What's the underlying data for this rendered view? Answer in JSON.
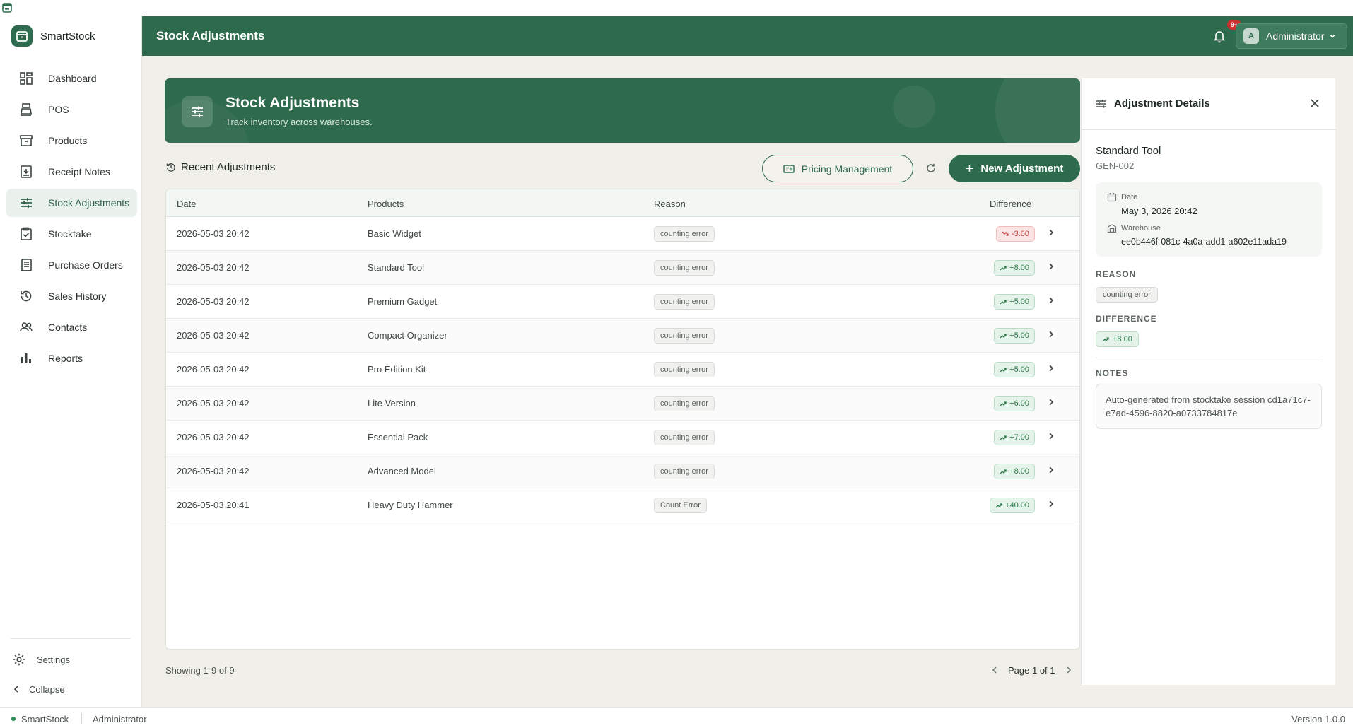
{
  "app": {
    "name": "SmartStock"
  },
  "colors": {
    "brand": "#2e6a4c",
    "positive": "#2b7a4c",
    "negative": "#c23a3a",
    "notification": "#c9312f"
  },
  "sidebar": {
    "items": [
      {
        "label": "Dashboard",
        "icon": "dashboard-icon"
      },
      {
        "label": "POS",
        "icon": "pos-icon"
      },
      {
        "label": "Products",
        "icon": "products-icon"
      },
      {
        "label": "Receipt Notes",
        "icon": "receipt-notes-icon"
      },
      {
        "label": "Stock Adjustments",
        "icon": "sliders-icon",
        "active": true
      },
      {
        "label": "Stocktake",
        "icon": "clipboard-check-icon"
      },
      {
        "label": "Purchase Orders",
        "icon": "purchase-orders-icon"
      },
      {
        "label": "Sales History",
        "icon": "history-icon"
      },
      {
        "label": "Contacts",
        "icon": "users-icon"
      },
      {
        "label": "Reports",
        "icon": "bar-chart-icon"
      }
    ],
    "settings_label": "Settings",
    "collapse_label": "Collapse"
  },
  "header": {
    "title": "Stock Adjustments",
    "notification_count": "9+",
    "user_initial": "A",
    "user_name": "Administrator"
  },
  "banner": {
    "title": "Stock Adjustments",
    "subtitle": "Track inventory across warehouses."
  },
  "toolbar": {
    "section_title": "Recent Adjustments",
    "pricing_label": "Pricing Management",
    "new_label": "New Adjustment"
  },
  "table": {
    "columns": {
      "date": "Date",
      "products": "Products",
      "reason": "Reason",
      "difference": "Difference"
    },
    "rows": [
      {
        "date": "2026-05-03 20:42",
        "product": "Basic Widget",
        "reason": "counting error",
        "difference": "-3.00",
        "direction": "down"
      },
      {
        "date": "2026-05-03 20:42",
        "product": "Standard Tool",
        "reason": "counting error",
        "difference": "+8.00",
        "direction": "up"
      },
      {
        "date": "2026-05-03 20:42",
        "product": "Premium Gadget",
        "reason": "counting error",
        "difference": "+5.00",
        "direction": "up"
      },
      {
        "date": "2026-05-03 20:42",
        "product": "Compact Organizer",
        "reason": "counting error",
        "difference": "+5.00",
        "direction": "up"
      },
      {
        "date": "2026-05-03 20:42",
        "product": "Pro Edition Kit",
        "reason": "counting error",
        "difference": "+5.00",
        "direction": "up"
      },
      {
        "date": "2026-05-03 20:42",
        "product": "Lite Version",
        "reason": "counting error",
        "difference": "+6.00",
        "direction": "up"
      },
      {
        "date": "2026-05-03 20:42",
        "product": "Essential Pack",
        "reason": "counting error",
        "difference": "+7.00",
        "direction": "up"
      },
      {
        "date": "2026-05-03 20:42",
        "product": "Advanced Model",
        "reason": "counting error",
        "difference": "+8.00",
        "direction": "up"
      },
      {
        "date": "2026-05-03 20:41",
        "product": "Heavy Duty Hammer",
        "reason": "Count Error",
        "difference": "+40.00",
        "direction": "up"
      }
    ]
  },
  "pagination": {
    "showing": "Showing 1-9 of 9",
    "page": "Page 1 of 1"
  },
  "details": {
    "title": "Adjustment Details",
    "product_name": "Standard Tool",
    "sku": "GEN-002",
    "date_label": "Date",
    "date_value": "May 3, 2026  20:42",
    "warehouse_label": "Warehouse",
    "warehouse_value": "ee0b446f-081c-4a0a-add1-a602e11ada19",
    "reason_label": "REASON",
    "reason_value": "counting error",
    "difference_label": "DIFFERENCE",
    "difference_value": "+8.00",
    "notes_label": "NOTES",
    "notes_value": "Auto-generated from stocktake session cd1a71c7-e7ad-4596-8820-a0733784817e"
  },
  "statusbar": {
    "app": "SmartStock",
    "user": "Administrator",
    "version": "Version 1.0.0"
  }
}
